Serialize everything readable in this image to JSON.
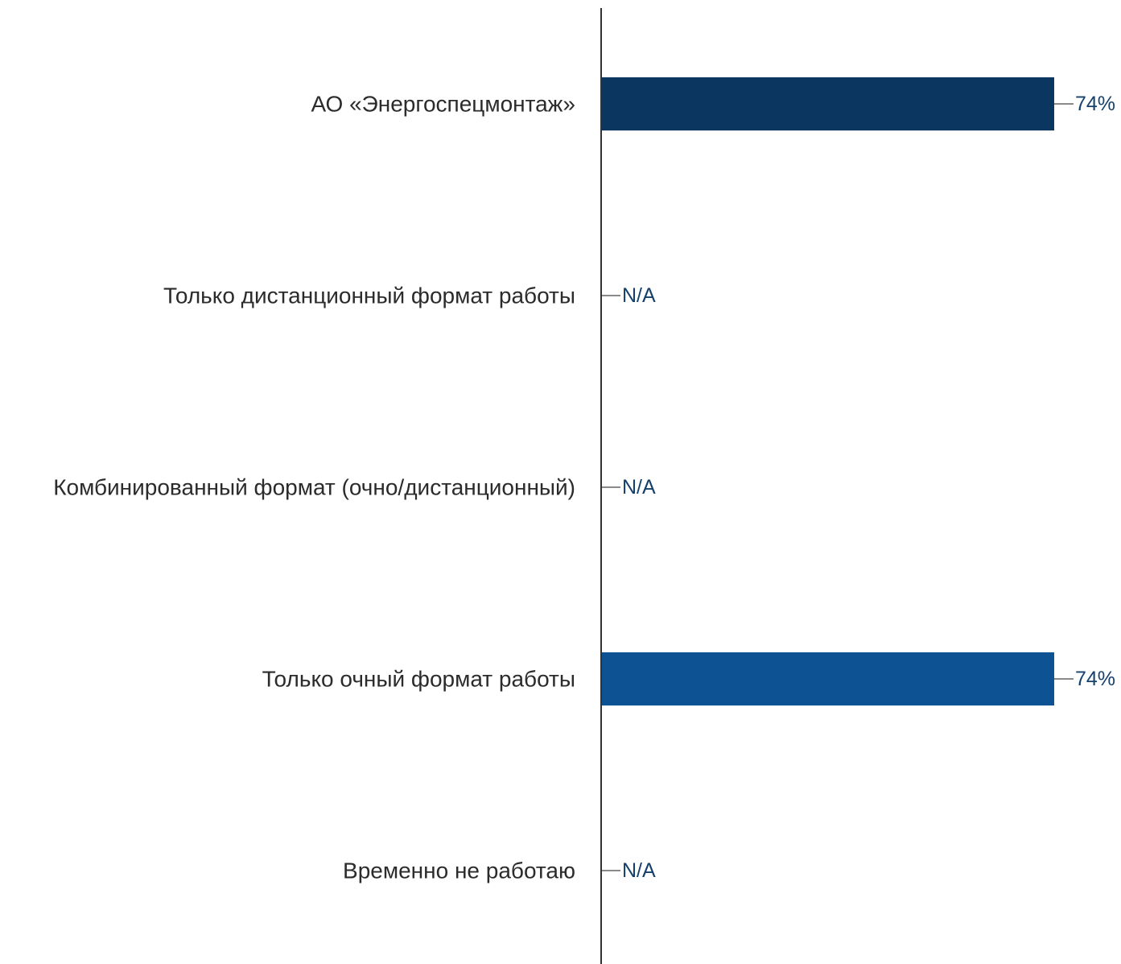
{
  "chart_data": {
    "type": "bar",
    "orientation": "horizontal",
    "categories": [
      "АО «Энергоспецмонтаж»",
      "Только дистанционный формат работы",
      "Комбинированный формат (очно/дистанционный)",
      "Только очный формат работы",
      "Временно не работаю"
    ],
    "values": [
      74,
      null,
      null,
      74,
      null
    ],
    "value_labels": [
      "74%",
      "N/A",
      "N/A",
      "74%",
      "N/A"
    ],
    "bar_colors": [
      "#0b3660",
      "#0d5293",
      "#0d5293",
      "#0d5293",
      "#0d5293"
    ],
    "label_color": "#16406c",
    "axis_color": "#333333",
    "leader_color": "#8a8a8a",
    "xlim": [
      0,
      74
    ],
    "grid": false,
    "legend": "none"
  }
}
